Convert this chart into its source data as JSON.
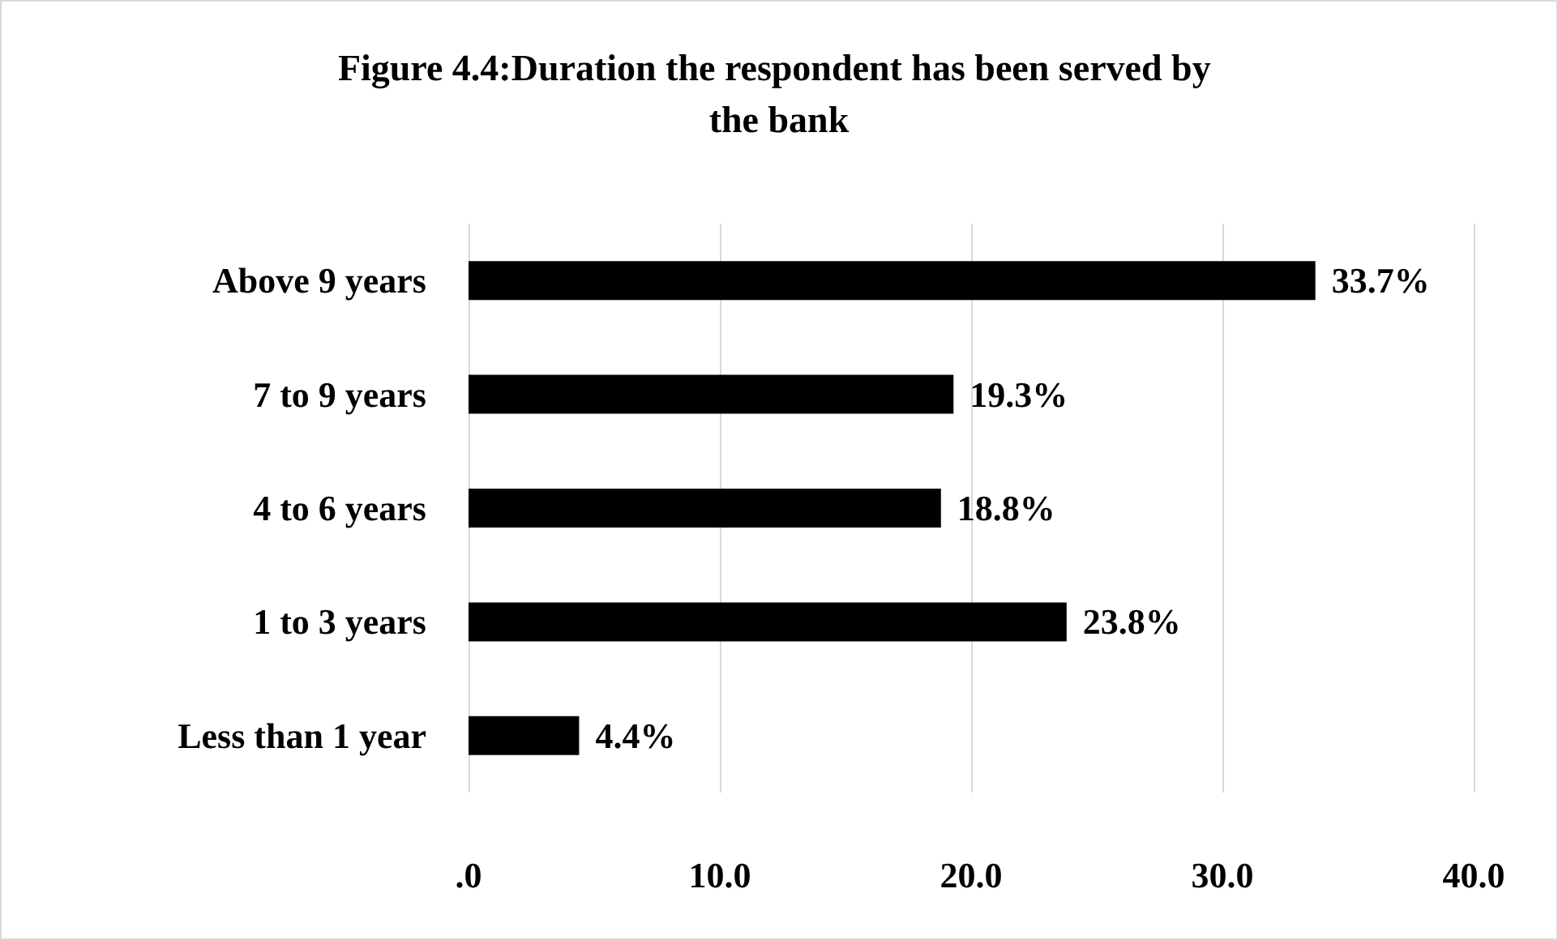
{
  "chart_data": {
    "type": "bar",
    "orientation": "horizontal",
    "title": "Figure 4.4:Duration the respondent has been served by the bank",
    "categories": [
      "Above 9 years",
      "7 to 9 years",
      "4 to 6 years",
      "1 to 3 years",
      "Less than 1 year"
    ],
    "values": [
      33.7,
      19.3,
      18.8,
      23.8,
      4.4
    ],
    "value_labels": [
      "33.7%",
      "19.3%",
      "18.8%",
      "23.8%",
      "4.4%"
    ],
    "color": "#000000",
    "xlim": [
      0,
      40
    ],
    "xticks": [
      {
        "value": 0,
        "label": ".0"
      },
      {
        "value": 10,
        "label": "10.0"
      },
      {
        "value": 20,
        "label": "20.0"
      },
      {
        "value": 30,
        "label": "30.0"
      },
      {
        "value": 40,
        "label": "40.0"
      }
    ],
    "grid": "x"
  }
}
